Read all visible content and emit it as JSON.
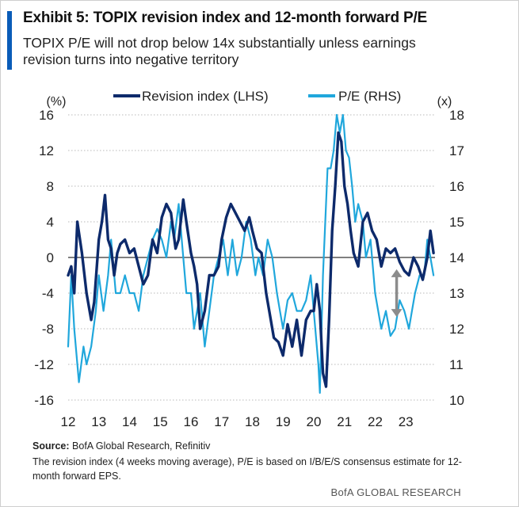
{
  "header": {
    "title": "Exhibit 5: TOPIX revision index and 12-month forward P/E",
    "subtitle": "TOPIX P/E will not drop below 14x substantially unless earnings revision turns into negative territory"
  },
  "footer": {
    "source_label": "Source:",
    "source_text": "BofA Global Research, Refinitiv",
    "note": "The revision index (4 weeks moving average), P/E is based on I/B/E/S consensus estimate for 12-month forward EPS.",
    "brand": "BofA GLOBAL RESEARCH"
  },
  "colors": {
    "accent": "#0a5cb8",
    "revision": "#0d2a6b",
    "pe": "#20a7dc",
    "zero_line": "#555555",
    "arrow": "#8c8c8c"
  },
  "chart_data": {
    "type": "line",
    "left_axis_unit": "(%)",
    "right_axis_unit": "(x)",
    "ylim_left": [
      -16,
      16
    ],
    "ylim_right": [
      10,
      18
    ],
    "left_ticks": [
      "16",
      "12",
      "8",
      "4",
      "0",
      "-4",
      "-8",
      "-12",
      "-16"
    ],
    "right_ticks": [
      "18",
      "17",
      "16",
      "15",
      "14",
      "13",
      "12",
      "11",
      "10"
    ],
    "x_ticks": [
      "12",
      "13",
      "14",
      "15",
      "16",
      "17",
      "18",
      "19",
      "20",
      "21",
      "22",
      "23"
    ],
    "xlim": [
      2012.0,
      2023.95
    ],
    "grid": "horizontal dotted",
    "legend": "top",
    "series": [
      {
        "name": "Revision index (LHS)",
        "axis": "left",
        "x": [
          2012.0,
          2012.1,
          2012.2,
          2012.3,
          2012.45,
          2012.6,
          2012.75,
          2012.85,
          2013.0,
          2013.1,
          2013.2,
          2013.3,
          2013.4,
          2013.5,
          2013.6,
          2013.7,
          2013.85,
          2014.0,
          2014.15,
          2014.3,
          2014.45,
          2014.6,
          2014.75,
          2014.9,
          2015.05,
          2015.2,
          2015.35,
          2015.5,
          2015.6,
          2015.75,
          2015.85,
          2016.0,
          2016.1,
          2016.2,
          2016.3,
          2016.45,
          2016.6,
          2016.75,
          2016.9,
          2017.0,
          2017.15,
          2017.3,
          2017.45,
          2017.6,
          2017.75,
          2017.9,
          2018.0,
          2018.15,
          2018.3,
          2018.45,
          2018.55,
          2018.7,
          2018.85,
          2019.0,
          2019.15,
          2019.3,
          2019.45,
          2019.6,
          2019.75,
          2019.9,
          2020.0,
          2020.1,
          2020.2,
          2020.3,
          2020.4,
          2020.5,
          2020.6,
          2020.7,
          2020.8,
          2020.9,
          2021.0,
          2021.1,
          2021.2,
          2021.3,
          2021.45,
          2021.6,
          2021.75,
          2021.9,
          2022.05,
          2022.2,
          2022.35,
          2022.5,
          2022.65,
          2022.8,
          2022.95,
          2023.1,
          2023.25,
          2023.4,
          2023.55,
          2023.7,
          2023.8,
          2023.9
        ],
        "values": [
          -2.0,
          -1.0,
          -4.0,
          4.0,
          0.5,
          -4.0,
          -7.0,
          -5.0,
          2.0,
          4.0,
          7.0,
          2.0,
          1.0,
          -2.0,
          0.5,
          1.5,
          2.0,
          0.5,
          1.0,
          -1.0,
          -3.0,
          -2.0,
          2.0,
          0.5,
          4.5,
          6.0,
          5.0,
          1.0,
          2.0,
          6.5,
          4.0,
          0.5,
          -1.0,
          -3.0,
          -8.0,
          -6.0,
          -2.0,
          -2.0,
          -1.0,
          2.0,
          4.5,
          6.0,
          5.0,
          4.0,
          3.0,
          4.5,
          3.0,
          1.0,
          0.5,
          -4.0,
          -6.0,
          -9.0,
          -9.5,
          -11.0,
          -7.5,
          -10.0,
          -7.0,
          -11.0,
          -7.0,
          -6.0,
          -6.0,
          -3.0,
          -6.0,
          -13.0,
          -14.5,
          -7.0,
          3.0,
          8.0,
          14.0,
          13.0,
          8.0,
          6.0,
          3.0,
          0.5,
          -1.0,
          4.0,
          5.0,
          3.0,
          2.0,
          -1.0,
          1.0,
          0.5,
          1.0,
          -0.5,
          -1.5,
          -2.0,
          0.0,
          -1.0,
          -2.5,
          0.0,
          3.0,
          0.5
        ]
      },
      {
        "name": "P/E (RHS)",
        "axis": "right",
        "x": [
          2012.0,
          2012.1,
          2012.2,
          2012.35,
          2012.5,
          2012.6,
          2012.75,
          2012.9,
          2013.0,
          2013.15,
          2013.3,
          2013.4,
          2013.55,
          2013.7,
          2013.85,
          2014.0,
          2014.15,
          2014.3,
          2014.45,
          2014.6,
          2014.75,
          2014.9,
          2015.05,
          2015.2,
          2015.35,
          2015.45,
          2015.6,
          2015.75,
          2015.85,
          2016.0,
          2016.1,
          2016.2,
          2016.3,
          2016.45,
          2016.6,
          2016.75,
          2016.9,
          2017.05,
          2017.2,
          2017.35,
          2017.5,
          2017.65,
          2017.8,
          2017.95,
          2018.1,
          2018.2,
          2018.35,
          2018.5,
          2018.65,
          2018.8,
          2018.9,
          2019.0,
          2019.15,
          2019.3,
          2019.45,
          2019.6,
          2019.75,
          2019.9,
          2020.05,
          2020.15,
          2020.2,
          2020.3,
          2020.45,
          2020.55,
          2020.65,
          2020.75,
          2020.85,
          2020.95,
          2021.05,
          2021.15,
          2021.25,
          2021.35,
          2021.45,
          2021.6,
          2021.7,
          2021.85,
          2022.0,
          2022.1,
          2022.2,
          2022.35,
          2022.5,
          2022.65,
          2022.8,
          2022.95,
          2023.1,
          2023.2,
          2023.3,
          2023.45,
          2023.6,
          2023.7,
          2023.8,
          2023.9
        ],
        "values": [
          11.5,
          13.5,
          12.0,
          10.5,
          11.5,
          11.0,
          11.5,
          12.5,
          13.5,
          12.5,
          13.5,
          14.5,
          13.0,
          13.0,
          13.5,
          13.0,
          13.0,
          12.5,
          13.5,
          14.0,
          14.5,
          14.8,
          14.5,
          14.0,
          15.0,
          14.5,
          15.5,
          14.0,
          13.0,
          13.0,
          12.0,
          12.5,
          13.0,
          11.5,
          12.5,
          13.5,
          14.0,
          14.5,
          13.5,
          14.5,
          13.5,
          14.0,
          15.0,
          14.5,
          13.5,
          14.0,
          13.5,
          14.5,
          14.0,
          13.0,
          12.5,
          12.0,
          12.8,
          13.0,
          12.5,
          12.5,
          12.8,
          13.5,
          12.0,
          11.0,
          10.2,
          13.5,
          16.5,
          16.5,
          17.0,
          18.0,
          17.5,
          18.0,
          17.0,
          16.8,
          16.0,
          15.0,
          15.5,
          15.0,
          14.0,
          14.5,
          13.0,
          12.5,
          12.0,
          12.5,
          11.8,
          12.0,
          12.8,
          12.5,
          12.0,
          12.5,
          13.0,
          13.5,
          13.5,
          14.5,
          14.0,
          13.5
        ]
      }
    ],
    "annotation": {
      "type": "double-arrow",
      "x": 2022.7,
      "y_from": -1.5,
      "y_to": -6.5,
      "axis": "left"
    }
  }
}
